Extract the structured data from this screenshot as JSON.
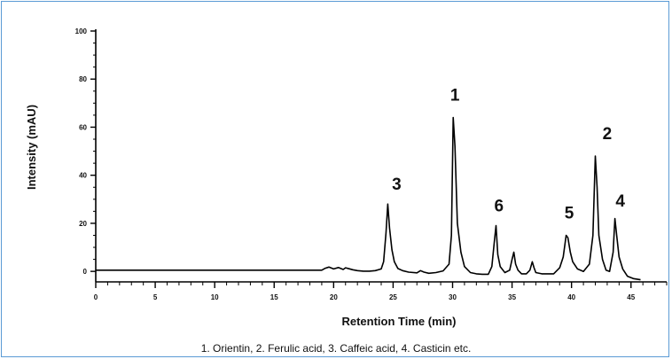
{
  "chart_data": {
    "type": "line",
    "title": "",
    "xlabel": "Retention Time (min)",
    "ylabel": "Intensity (mAU)",
    "xlim": [
      0,
      48
    ],
    "ylim": [
      -4,
      100
    ],
    "x_ticks": [
      0,
      5,
      10,
      15,
      20,
      25,
      30,
      35,
      40,
      45
    ],
    "x_tick_labels": [
      "0",
      "5",
      "10",
      "15",
      "20",
      "25",
      "30",
      "35",
      "40",
      "45"
    ],
    "y_ticks": [
      0,
      20,
      40,
      60,
      80,
      100
    ],
    "y_tick_labels": [
      "0",
      "20",
      "40",
      "60",
      "80",
      "100"
    ],
    "grid": false,
    "series": [
      {
        "x": [
          0,
          19,
          19.3,
          19.6,
          20.0,
          20.4,
          20.8,
          21.0,
          21.3,
          21.6,
          22.0,
          22.5,
          23.0,
          23.5,
          24.0,
          24.2,
          24.4,
          24.55,
          24.7,
          24.9,
          25.1,
          25.4,
          25.8,
          26.3,
          27.0,
          27.3,
          27.6,
          28.0,
          28.6,
          29.2,
          29.7,
          29.9,
          30.05,
          30.2,
          30.4,
          30.7,
          31.0,
          31.5,
          32.0,
          32.5,
          33.0,
          33.3,
          33.5,
          33.65,
          33.8,
          34.0,
          34.4,
          34.8,
          35.0,
          35.15,
          35.3,
          35.5,
          35.8,
          36.2,
          36.5,
          36.7,
          36.85,
          37.0,
          37.5,
          38.0,
          38.5,
          39.0,
          39.3,
          39.55,
          39.7,
          39.9,
          40.1,
          40.5,
          41.0,
          41.5,
          41.8,
          42.0,
          42.15,
          42.3,
          42.6,
          42.9,
          43.2,
          43.5,
          43.65,
          43.8,
          44.0,
          44.3,
          44.7,
          45.2,
          45.8
        ],
        "y": [
          0.5,
          0.5,
          1.3,
          1.8,
          1.0,
          1.6,
          0.8,
          1.5,
          1.1,
          0.7,
          0.3,
          0.1,
          0.1,
          0.3,
          1.0,
          4.0,
          16.0,
          28.0,
          18.0,
          9.0,
          4.0,
          1.2,
          0.3,
          -0.3,
          -0.6,
          0.3,
          -0.3,
          -0.8,
          -0.5,
          0.2,
          3.0,
          15.0,
          64.0,
          52.0,
          20.0,
          8.0,
          2.0,
          -0.5,
          -1.0,
          -1.2,
          -1.2,
          2.0,
          12.0,
          19.0,
          7.0,
          2.0,
          -0.5,
          0.5,
          5.0,
          8.0,
          3.0,
          0.5,
          -1.0,
          -1.0,
          0.5,
          4.0,
          1.5,
          -0.5,
          -1.0,
          -1.0,
          -1.0,
          1.5,
          6.0,
          15.0,
          14.0,
          8.0,
          4.0,
          1.0,
          0.0,
          3.0,
          15.0,
          48.0,
          35.0,
          15.0,
          5.0,
          0.5,
          0.0,
          8.0,
          22.0,
          15.0,
          6.0,
          1.0,
          -2.0,
          -3.0,
          -3.5
        ]
      }
    ],
    "annotations": [
      {
        "text": "3",
        "x": 25.3,
        "y": 34
      },
      {
        "text": "1",
        "x": 30.2,
        "y": 71
      },
      {
        "text": "6",
        "x": 33.9,
        "y": 25
      },
      {
        "text": "5",
        "x": 39.8,
        "y": 22
      },
      {
        "text": "2",
        "x": 43.0,
        "y": 55
      },
      {
        "text": "4",
        "x": 44.1,
        "y": 27
      }
    ],
    "note": "1. Orientin, 2. Ferulic acid, 3.  Caffeic acid, 4.  Casticin etc."
  },
  "colors": {
    "frame": "#5b9bd5",
    "trace": "#000000"
  }
}
